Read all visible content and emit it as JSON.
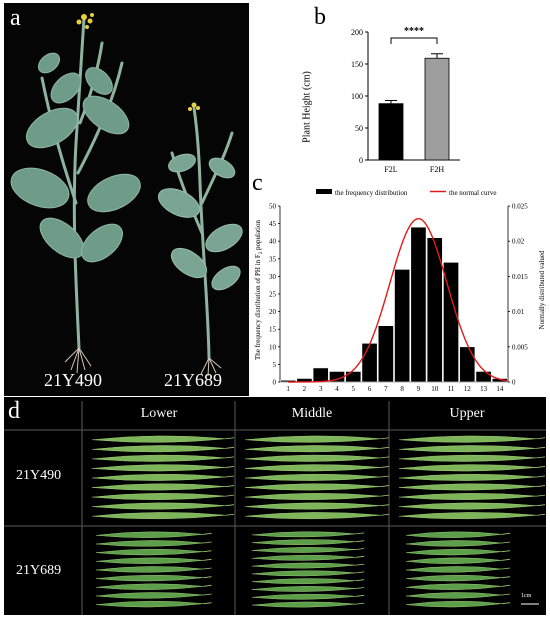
{
  "panel_a": {
    "letter": "a",
    "left_cultivar": "21Y490",
    "right_cultivar": "21Y689"
  },
  "panel_b": {
    "letter": "b",
    "significance": "****",
    "y_axis_title": "Plant Height (cm)",
    "y_ticks": [
      "0",
      "50",
      "100",
      "150",
      "200"
    ]
  },
  "panel_c": {
    "letter": "c",
    "legend_bar": "the frequency distribution",
    "legend_curve": "the normal curve",
    "y_left_title_main": "The frequency distribution of PH in F",
    "y_left_title_sub": "2",
    "y_left_title_tail": " population",
    "y_right_title": "Normally distributed valued",
    "y_left_ticks": [
      "0",
      "5",
      "10",
      "15",
      "20",
      "25",
      "30",
      "35",
      "40",
      "45",
      "50"
    ],
    "y_right_ticks": [
      "0",
      "0.005",
      "0.01",
      "0.015",
      "0.02",
      "0.025"
    ]
  },
  "panel_d": {
    "letter": "d",
    "columns": [
      "Lower",
      "Middle",
      "Upper"
    ],
    "rows": [
      "21Y490",
      "21Y689"
    ],
    "scale_bar": "1cm"
  },
  "chart_data": [
    {
      "type": "bar",
      "categories": [
        "F2L",
        "F2H"
      ],
      "values": [
        88,
        159
      ],
      "errors": [
        5,
        7
      ],
      "colors": [
        "#000000",
        "#9e9e9e"
      ],
      "title": "",
      "xlabel": "",
      "ylabel": "Plant Height (cm)",
      "ylim": [
        0,
        200
      ]
    },
    {
      "type": "bar",
      "categories": [
        "1",
        "2",
        "3",
        "4",
        "5",
        "6",
        "7",
        "8",
        "9",
        "10",
        "11",
        "12",
        "13",
        "14"
      ],
      "values": [
        0.5,
        1,
        4,
        3,
        3,
        11,
        16,
        32,
        44,
        41,
        34,
        10,
        3,
        1
      ],
      "ylim": [
        0,
        50
      ],
      "curve": {
        "name": "the normal curve",
        "axis": "right",
        "ylim": [
          0,
          0.025
        ],
        "mean": 9.0,
        "sd": 1.75,
        "peak": 0.0232,
        "color": "#e31a1c"
      },
      "legend": [
        "the frequency distribution",
        "the normal curve"
      ],
      "ylabel": "The frequency distribution of PH in F2 population",
      "y2label": "Normally distributed valued"
    }
  ]
}
